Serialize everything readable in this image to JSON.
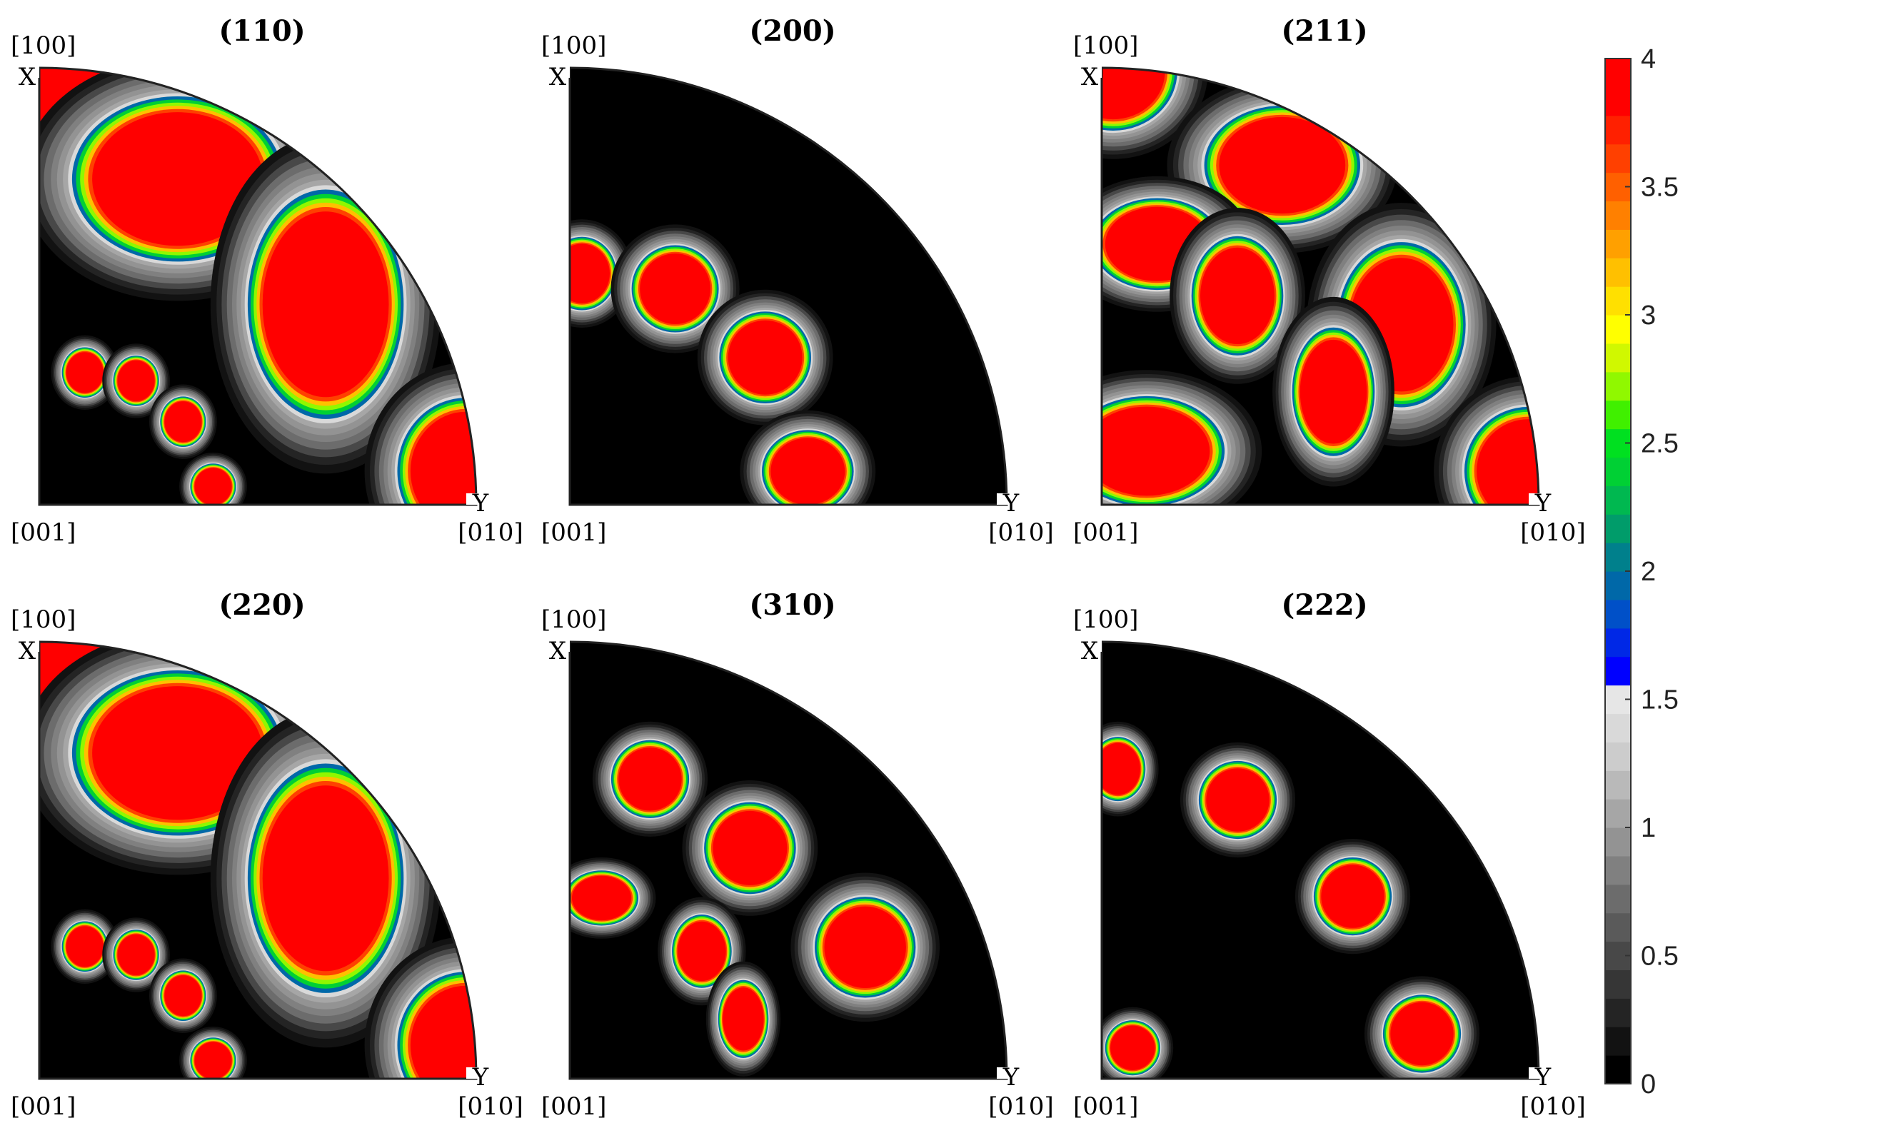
{
  "chart_data": [
    {
      "type": "heatmap",
      "title": "(110)",
      "corner_labels": {
        "top_index": "[100]",
        "top_axis": "X",
        "origin_index": "[001]",
        "right_index": "[010]",
        "right_axis": "Y"
      },
      "poles": [
        {
          "r": 0.993,
          "theta_deg": 88.5,
          "rx": 0.16,
          "ry": 0.15,
          "peak": 4
        },
        {
          "r": 0.81,
          "theta_deg": 67.0,
          "rx": 0.23,
          "ry": 0.18,
          "peak": 4
        },
        {
          "r": 0.8,
          "theta_deg": 35.0,
          "rx": 0.17,
          "ry": 0.25,
          "peak": 4
        },
        {
          "r": 0.98,
          "theta_deg": 4.5,
          "rx": 0.15,
          "ry": 0.16,
          "peak": 4
        },
        {
          "r": 0.32,
          "theta_deg": 71.0,
          "rx": 0.05,
          "ry": 0.055,
          "peak": 4
        },
        {
          "r": 0.36,
          "theta_deg": 52.0,
          "rx": 0.05,
          "ry": 0.055,
          "peak": 4
        },
        {
          "r": 0.38,
          "theta_deg": 30.0,
          "rx": 0.05,
          "ry": 0.055,
          "peak": 4
        },
        {
          "r": 0.4,
          "theta_deg": 6.0,
          "rx": 0.05,
          "ry": 0.05,
          "peak": 4
        }
      ]
    },
    {
      "type": "heatmap",
      "title": "(200)",
      "corner_labels": {
        "top_index": "[100]",
        "top_axis": "X",
        "origin_index": "[001]",
        "right_index": "[010]",
        "right_axis": "Y"
      },
      "poles": [
        {
          "r": 0.53,
          "theta_deg": 87.0,
          "rx": 0.075,
          "ry": 0.08,
          "peak": 4
        },
        {
          "r": 0.55,
          "theta_deg": 64.0,
          "rx": 0.095,
          "ry": 0.095,
          "peak": 4
        },
        {
          "r": 0.56,
          "theta_deg": 37.0,
          "rx": 0.1,
          "ry": 0.1,
          "peak": 4
        },
        {
          "r": 0.55,
          "theta_deg": 8.0,
          "rx": 0.1,
          "ry": 0.09,
          "peak": 4
        }
      ]
    },
    {
      "type": "heatmap",
      "title": "(211)",
      "corner_labels": {
        "top_index": "[100]",
        "top_axis": "X",
        "origin_index": "[001]",
        "right_index": "[010]",
        "right_axis": "Y"
      },
      "poles": [
        {
          "r": 0.993,
          "theta_deg": 88.5,
          "rx": 0.14,
          "ry": 0.13,
          "peak": 4
        },
        {
          "r": 0.88,
          "theta_deg": 62.0,
          "rx": 0.17,
          "ry": 0.13,
          "peak": 4
        },
        {
          "r": 0.8,
          "theta_deg": 31.0,
          "rx": 0.14,
          "ry": 0.18,
          "peak": 4
        },
        {
          "r": 0.98,
          "theta_deg": 4.5,
          "rx": 0.14,
          "ry": 0.14,
          "peak": 4
        },
        {
          "r": 0.61,
          "theta_deg": 78.0,
          "rx": 0.14,
          "ry": 0.1,
          "peak": 4
        },
        {
          "r": 0.57,
          "theta_deg": 57.0,
          "rx": 0.1,
          "ry": 0.13,
          "peak": 4
        },
        {
          "r": 0.59,
          "theta_deg": 26.0,
          "rx": 0.09,
          "ry": 0.14,
          "peak": 4
        },
        {
          "r": 0.16,
          "theta_deg": 50.0,
          "rx": 0.17,
          "ry": 0.12,
          "peak": 4
        }
      ]
    },
    {
      "type": "heatmap",
      "title": "(220)",
      "corner_labels": {
        "top_index": "[100]",
        "top_axis": "X",
        "origin_index": "[001]",
        "right_index": "[010]",
        "right_axis": "Y"
      },
      "poles": [
        {
          "r": 0.993,
          "theta_deg": 88.5,
          "rx": 0.16,
          "ry": 0.15,
          "peak": 4
        },
        {
          "r": 0.81,
          "theta_deg": 67.0,
          "rx": 0.23,
          "ry": 0.18,
          "peak": 4
        },
        {
          "r": 0.8,
          "theta_deg": 35.0,
          "rx": 0.17,
          "ry": 0.25,
          "peak": 4
        },
        {
          "r": 0.98,
          "theta_deg": 4.5,
          "rx": 0.15,
          "ry": 0.16,
          "peak": 4
        },
        {
          "r": 0.32,
          "theta_deg": 71.0,
          "rx": 0.05,
          "ry": 0.055,
          "peak": 4
        },
        {
          "r": 0.36,
          "theta_deg": 52.0,
          "rx": 0.05,
          "ry": 0.055,
          "peak": 4
        },
        {
          "r": 0.38,
          "theta_deg": 30.0,
          "rx": 0.05,
          "ry": 0.055,
          "peak": 4
        },
        {
          "r": 0.4,
          "theta_deg": 6.0,
          "rx": 0.05,
          "ry": 0.05,
          "peak": 4
        }
      ]
    },
    {
      "type": "heatmap",
      "title": "(310)",
      "corner_labels": {
        "top_index": "[100]",
        "top_axis": "X",
        "origin_index": "[001]",
        "right_index": "[010]",
        "right_axis": "Y"
      },
      "poles": [
        {
          "r": 0.71,
          "theta_deg": 75.0,
          "rx": 0.085,
          "ry": 0.085,
          "peak": 4
        },
        {
          "r": 0.67,
          "theta_deg": 52.0,
          "rx": 0.1,
          "ry": 0.1,
          "peak": 4
        },
        {
          "r": 0.74,
          "theta_deg": 24.0,
          "rx": 0.11,
          "ry": 0.11,
          "peak": 4
        },
        {
          "r": 0.42,
          "theta_deg": 80.0,
          "rx": 0.08,
          "ry": 0.06,
          "peak": 4
        },
        {
          "r": 0.42,
          "theta_deg": 44.0,
          "rx": 0.065,
          "ry": 0.08,
          "peak": 4
        },
        {
          "r": 0.42,
          "theta_deg": 19.0,
          "rx": 0.055,
          "ry": 0.085,
          "peak": 4
        }
      ]
    },
    {
      "type": "heatmap",
      "title": "(222)",
      "corner_labels": {
        "top_index": "[100]",
        "top_axis": "X",
        "origin_index": "[001]",
        "right_index": "[010]",
        "right_axis": "Y"
      },
      "poles": [
        {
          "r": 0.71,
          "theta_deg": 87.0,
          "rx": 0.06,
          "ry": 0.07,
          "peak": 4
        },
        {
          "r": 0.71,
          "theta_deg": 64.0,
          "rx": 0.085,
          "ry": 0.085,
          "peak": 4
        },
        {
          "r": 0.71,
          "theta_deg": 36.0,
          "rx": 0.085,
          "ry": 0.085,
          "peak": 4
        },
        {
          "r": 0.74,
          "theta_deg": 8.0,
          "rx": 0.085,
          "ry": 0.085,
          "peak": 4
        },
        {
          "r": 0.1,
          "theta_deg": 45.0,
          "rx": 0.06,
          "ry": 0.06,
          "peak": 4
        }
      ]
    }
  ],
  "colorbar": {
    "min": 0,
    "max": 4,
    "ticks": [
      0,
      0.5,
      1,
      1.5,
      2,
      2.5,
      3,
      3.5,
      4
    ],
    "tick_labels": [
      "0",
      "0.5",
      "1",
      "1.5",
      "2",
      "2.5",
      "3",
      "3.5",
      "4"
    ],
    "colors": [
      "#000000",
      "#121212",
      "#242424",
      "#363636",
      "#484848",
      "#5a5a5a",
      "#6c6c6c",
      "#808080",
      "#939393",
      "#a6a6a6",
      "#b9b9b9",
      "#cccccc",
      "#d9d9d9",
      "#e6e6e6",
      "#0000ff",
      "#0028e6",
      "#0050c8",
      "#0068a8",
      "#00808c",
      "#009c6a",
      "#00b850",
      "#00d034",
      "#00e020",
      "#40f000",
      "#90f800",
      "#d0f800",
      "#ffff00",
      "#ffe000",
      "#ffc000",
      "#ffa000",
      "#ff8000",
      "#ff6000",
      "#ff4000",
      "#ff2000",
      "#ff0000",
      "#ff0000"
    ]
  }
}
